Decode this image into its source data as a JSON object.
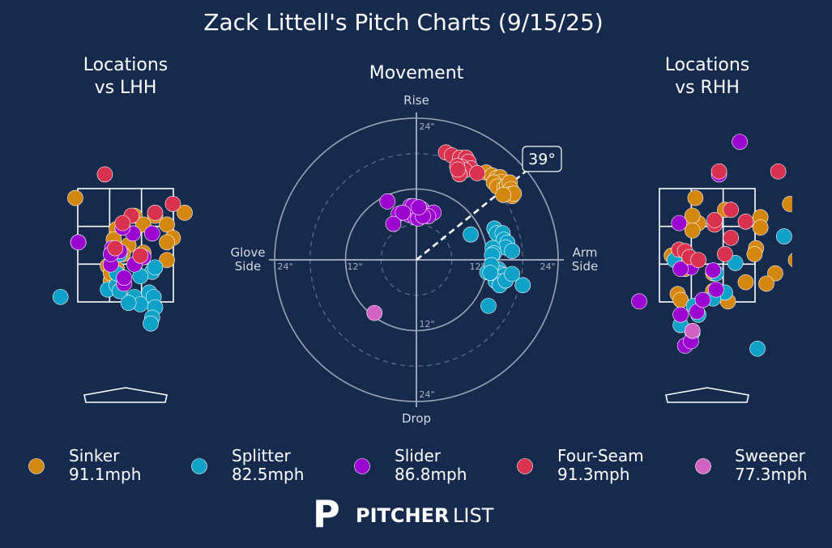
{
  "title": "Zack Littell's Pitch Charts (9/15/25)",
  "colors": {
    "background": "#152a4d",
    "Sinker": "#d4870f",
    "Splitter": "#0ea2c9",
    "Slider": "#9b05cf",
    "Four-Seam": "#d9324f",
    "Sweeper": "#d263c4"
  },
  "logo": {
    "mark": "P",
    "bold": "PITCHER",
    "light": "LIST"
  },
  "chart_data": [
    {
      "type": "scatter",
      "title": "Locations\nvs LHH",
      "series": [
        {
          "name": "Sinker",
          "points": [
            [
              -1.7,
              1.6
            ],
            [
              0.3,
              1.0
            ],
            [
              1.0,
              1.0
            ],
            [
              0.6,
              0.7
            ],
            [
              1.4,
              0.7
            ],
            [
              -0.3,
              0.55
            ],
            [
              -0.4,
              0.2
            ],
            [
              0.1,
              0.0
            ],
            [
              1.6,
              0.25
            ],
            [
              0.6,
              -0.25
            ],
            [
              -0.1,
              -0.3
            ],
            [
              1.4,
              -0.5
            ],
            [
              -0.6,
              -0.7
            ],
            [
              -0.3,
              -0.8
            ],
            [
              -0.5,
              -1.2
            ],
            [
              2.0,
              1.1
            ],
            [
              1.4,
              0.1
            ],
            [
              -0.5,
              -0.95
            ]
          ]
        },
        {
          "name": "Splitter",
          "points": [
            [
              -1.6,
              0.1
            ],
            [
              0.3,
              -1.75
            ],
            [
              0.8,
              -1.6
            ],
            [
              0.9,
              -0.9
            ],
            [
              1.0,
              -0.75
            ],
            [
              0.5,
              -1.05
            ],
            [
              0.5,
              -2.0
            ],
            [
              0.1,
              -1.95
            ],
            [
              -0.2,
              -0.3
            ],
            [
              -0.6,
              -1.5
            ],
            [
              -0.3,
              -1.35
            ],
            [
              -0.3,
              -0.95
            ],
            [
              -0.2,
              -1.55
            ],
            [
              -2.2,
              -1.75
            ],
            [
              0.95,
              -1.75
            ],
            [
              1.0,
              -2.1
            ],
            [
              0.9,
              -2.45
            ],
            [
              0.85,
              -2.65
            ]
          ]
        },
        {
          "name": "Slider",
          "points": [
            [
              0.6,
              -0.4
            ],
            [
              -0.2,
              -0.2
            ],
            [
              0.3,
              -0.65
            ],
            [
              -0.5,
              -0.65
            ],
            [
              -0.45,
              -0.1
            ],
            [
              -0.5,
              -0.3
            ],
            [
              -0.05,
              -1.3
            ],
            [
              -0.05,
              -1.1
            ],
            [
              -1.6,
              0.1
            ],
            [
              0.25,
              0.4
            ],
            [
              0.9,
              0.4
            ],
            [
              -0.1,
              0.6
            ]
          ]
        },
        {
          "name": "Four-Seam",
          "points": [
            [
              -0.7,
              2.4
            ],
            [
              0.2,
              1.0
            ],
            [
              1.6,
              1.4
            ],
            [
              -0.35,
              -0.1
            ],
            [
              0.5,
              -0.35
            ],
            [
              1.0,
              1.1
            ],
            [
              -0.1,
              0.75
            ]
          ]
        }
      ]
    },
    {
      "type": "scatter",
      "title": "Movement",
      "axis_labels": {
        "top": "Rise",
        "bottom": "Drop",
        "left": "Glove\nSide",
        "right": "Arm\nSide"
      },
      "ring_labels": [
        "24\"",
        "12\"",
        "12\"",
        "24\"",
        "24\"",
        "12\"",
        "24\""
      ],
      "radius_range": [
        0,
        24
      ],
      "arm_angle": "39°",
      "arm_angle_deg": 39,
      "series": [
        {
          "name": "Sinker",
          "points": [
            [
              11.8,
              14.8
            ],
            [
              12.8,
              14.3
            ],
            [
              13.6,
              13.9
            ],
            [
              14.2,
              14.0
            ],
            [
              14.4,
              13.2
            ],
            [
              13.1,
              13.1
            ],
            [
              13.7,
              12.4
            ],
            [
              14.9,
              12.2
            ],
            [
              15.3,
              12.6
            ],
            [
              15.8,
              13.1
            ],
            [
              16.0,
              12.0
            ],
            [
              15.8,
              11.1
            ],
            [
              16.2,
              10.8
            ],
            [
              16.5,
              11.2
            ],
            [
              14.7,
              11.0
            ]
          ]
        },
        {
          "name": "Splitter",
          "points": [
            [
              13.2,
              5.3
            ],
            [
              13.6,
              4.5
            ],
            [
              14.6,
              4.5
            ],
            [
              14.8,
              3.4
            ],
            [
              15.4,
              2.9
            ],
            [
              15.1,
              2.1
            ],
            [
              16.2,
              1.5
            ],
            [
              12.9,
              2.0
            ],
            [
              13.1,
              1.1
            ],
            [
              12.8,
              0.8
            ],
            [
              9.2,
              4.3
            ],
            [
              12.0,
              -2.1
            ],
            [
              13.0,
              -1.7
            ],
            [
              13.9,
              -1.6
            ],
            [
              13.3,
              -2.4
            ],
            [
              14.2,
              -2.3
            ],
            [
              14.9,
              -2.6
            ],
            [
              13.4,
              -3.6
            ],
            [
              14.3,
              -3.7
            ],
            [
              14.1,
              -4.3
            ],
            [
              15.1,
              -3.5
            ],
            [
              16.2,
              -2.4
            ],
            [
              18.0,
              -4.3
            ],
            [
              12.7,
              -0.9
            ],
            [
              12.5,
              -2.2
            ],
            [
              12.2,
              -7.8
            ]
          ]
        },
        {
          "name": "Slider",
          "points": [
            [
              -4.9,
              9.9
            ],
            [
              -1.0,
              9.1
            ],
            [
              -3.0,
              7.8
            ],
            [
              -0.2,
              8.3
            ],
            [
              -1.2,
              7.6
            ],
            [
              -0.2,
              7.2
            ],
            [
              0.9,
              8.6
            ],
            [
              1.6,
              7.9
            ],
            [
              -0.6,
              9.1
            ],
            [
              0.3,
              7.0
            ],
            [
              -2.3,
              8.0
            ],
            [
              2.9,
              8.0
            ],
            [
              -3.9,
              6.1
            ],
            [
              2.0,
              7.4
            ],
            [
              1.1,
              7.4
            ],
            [
              0.4,
              8.9
            ]
          ]
        },
        {
          "name": "Four-Seam",
          "points": [
            [
              5.0,
              18.2
            ],
            [
              6.0,
              17.7
            ],
            [
              7.4,
              17.3
            ],
            [
              8.4,
              17.3
            ],
            [
              8.8,
              16.6
            ],
            [
              9.2,
              15.5
            ],
            [
              7.6,
              15.8
            ],
            [
              8.2,
              15.2
            ],
            [
              10.3,
              14.7
            ],
            [
              7.3,
              14.5
            ],
            [
              6.9,
              15.9
            ],
            [
              7.0,
              15.3
            ]
          ]
        },
        {
          "name": "Sweeper",
          "points": [
            [
              -7.1,
              -9.0
            ]
          ]
        }
      ]
    },
    {
      "type": "scatter",
      "title": "Locations\nvs RHH",
      "series": [
        {
          "name": "Sinker",
          "points": [
            [
              -0.4,
              1.6
            ],
            [
              -0.5,
              0.8
            ],
            [
              -0.3,
              0.75
            ],
            [
              -1.2,
              -0.35
            ],
            [
              -1.0,
              -1.65
            ],
            [
              0.6,
              1.2
            ],
            [
              1.8,
              0.95
            ],
            [
              1.65,
              -0.1
            ],
            [
              0.7,
              -1.9
            ],
            [
              1.3,
              -1.25
            ],
            [
              1.6,
              -0.3
            ],
            [
              -0.5,
              1.0
            ],
            [
              -0.9,
              -1.85
            ],
            [
              0.2,
              -0.95
            ],
            [
              0.2,
              -1.55
            ],
            [
              1.8,
              0.6
            ],
            [
              2.8,
              1.4
            ],
            [
              2.3,
              -0.95
            ],
            [
              -0.75,
              -0.8
            ],
            [
              -0.5,
              0.5
            ],
            [
              2.0,
              -1.3
            ],
            [
              3.0,
              -0.5
            ],
            [
              3.7,
              2.9
            ]
          ]
        },
        {
          "name": "Splitter",
          "points": [
            [
              -0.7,
              -0.4
            ],
            [
              0.6,
              -1.6
            ],
            [
              -0.8,
              -0.55
            ],
            [
              -1.1,
              -0.5
            ],
            [
              2.6,
              0.3
            ],
            [
              -0.9,
              -2.7
            ],
            [
              -0.5,
              -2.95
            ],
            [
              -0.3,
              -2.35
            ],
            [
              0.2,
              -1.8
            ],
            [
              -0.45,
              -2.05
            ],
            [
              1.7,
              -3.5
            ],
            [
              0.95,
              -0.6
            ],
            [
              0.3,
              -0.95
            ],
            [
              4.2,
              2.8
            ]
          ]
        },
        {
          "name": "Slider",
          "points": [
            [
              -2.3,
              -1.9
            ],
            [
              -0.95,
              0.75
            ],
            [
              -0.6,
              -0.5
            ],
            [
              -0.55,
              -0.75
            ],
            [
              -0.9,
              -0.8
            ],
            [
              -0.9,
              -2.35
            ],
            [
              0.2,
              -0.85
            ],
            [
              0.3,
              -1.5
            ],
            [
              -0.75,
              -3.4
            ],
            [
              1.1,
              3.5
            ],
            [
              -0.55,
              -3.25
            ],
            [
              -0.35,
              -2.25
            ],
            [
              -0.15,
              -1.85
            ],
            [
              0.4,
              2.4
            ]
          ]
        },
        {
          "name": "Four-Seam",
          "points": [
            [
              0.8,
              1.2
            ],
            [
              0.4,
              2.5
            ],
            [
              0.25,
              0.7
            ],
            [
              -0.95,
              -0.15
            ],
            [
              0.6,
              -0.3
            ],
            [
              -0.75,
              -0.2
            ],
            [
              0.25,
              0.85
            ],
            [
              1.3,
              0.8
            ],
            [
              -0.6,
              -0.4
            ],
            [
              -0.3,
              -0.5
            ],
            [
              0.8,
              0.25
            ],
            [
              2.4,
              2.5
            ]
          ]
        },
        {
          "name": "Sweeper",
          "points": [
            [
              -0.5,
              -2.9
            ]
          ]
        }
      ]
    },
    {
      "type": "legend",
      "entries": [
        {
          "name": "Sinker",
          "velo": "91.1mph"
        },
        {
          "name": "Splitter",
          "velo": "82.5mph"
        },
        {
          "name": "Slider",
          "velo": "86.8mph"
        },
        {
          "name": "Four-Seam",
          "velo": "91.3mph"
        },
        {
          "name": "Sweeper",
          "velo": "77.3mph"
        }
      ]
    }
  ]
}
